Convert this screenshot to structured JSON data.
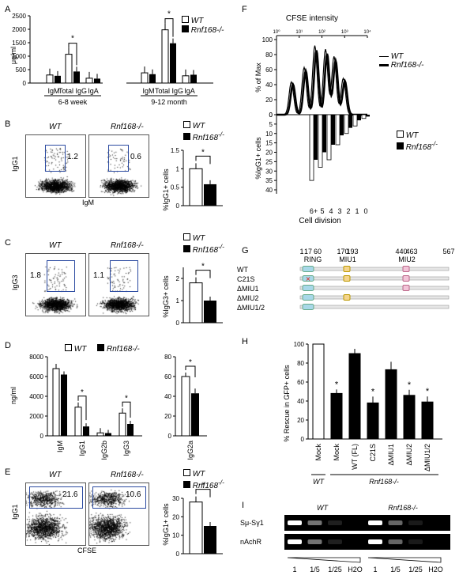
{
  "panels": {
    "A": {
      "label": "A",
      "ylabel": "μg/ml",
      "legend": [
        "WT",
        "Rnf168-/-"
      ],
      "groups": [
        {
          "name": "6-8 week",
          "categories": [
            "IgM",
            "Total IgG",
            "IgA"
          ]
        },
        {
          "name": "9-12 month",
          "categories": [
            "IgM",
            "Total IgG",
            "IgA"
          ]
        }
      ],
      "sig": "*"
    },
    "B": {
      "label": "B",
      "wt_title": "WT",
      "ko_title": "Rnf168-/-",
      "wt_gate": "1.2",
      "ko_gate": "0.6",
      "ylabel": "IgG1",
      "xlabel": "IgM",
      "bar_ylabel": "%IgG1+ cells",
      "sig": "*"
    },
    "C": {
      "label": "C",
      "wt_title": "WT",
      "ko_title": "Rnf168-/-",
      "wt_gate": "1.8",
      "ko_gate": "1.1",
      "ylabel": "IgG3",
      "bar_ylabel": "%IgG3+ cells",
      "sig": "*"
    },
    "D": {
      "label": "D",
      "ylabel": "ng/ml",
      "legend": [
        "WT",
        "Rnf168-/-"
      ],
      "categories": [
        "IgM",
        "IgG1",
        "IgG2b",
        "IgG3"
      ],
      "cat2": [
        "IgG2a"
      ],
      "sig": "*"
    },
    "E": {
      "label": "E",
      "wt_title": "WT",
      "ko_title": "Rnf168-/-",
      "wt_gate": "21.6",
      "ko_gate": "10.6",
      "ylabel": "IgG1",
      "xlabel": "CFSE",
      "bar_ylabel": "%IgG1+ cells",
      "sig": "*"
    },
    "F": {
      "label": "F",
      "title": "CFSE intensity",
      "ylabel_top": "% of Max",
      "ylabel_bottom": "%IgG1+ cells",
      "xlabel": "Cell division",
      "legend": [
        "WT",
        "Rnf168-/-"
      ],
      "div_labels": [
        "6+",
        "5",
        "4",
        "3",
        "2",
        "1",
        "0"
      ]
    },
    "G": {
      "label": "G",
      "positions": [
        "1",
        "17",
        "60",
        "170",
        "193",
        "440",
        "463",
        "567"
      ],
      "domains": [
        "RING",
        "MIU1",
        "MIU2"
      ],
      "constructs": [
        "WT",
        "C21S",
        "ΔMIU1",
        "ΔMIU2",
        "ΔMIU1/2"
      ]
    },
    "H": {
      "label": "H",
      "ylabel": "% Rescue in GFP+ cells",
      "categories": [
        "Mock",
        "Mock",
        "WT (FL)",
        "C21S",
        "ΔMIU1",
        "ΔMIU2",
        "ΔMIU1/2"
      ],
      "group1": "WT",
      "group2": "Rnf168-/-",
      "sig": "*"
    },
    "I": {
      "label": "I",
      "wt": "WT",
      "ko": "Rnf168-/-",
      "rows": [
        "Sμ-Sγ1",
        "nAchR"
      ],
      "lanes": [
        "1",
        "1/5",
        "1/25",
        "H2O",
        "1",
        "1/5",
        "1/25",
        "H2O"
      ]
    }
  },
  "chart_data": [
    {
      "type": "bar",
      "panel": "A",
      "ylabel": "μg/ml",
      "ylim": [
        0,
        2500
      ],
      "categories": [
        "IgM",
        "Total IgG",
        "IgA",
        "IgM",
        "Total IgG",
        "IgA"
      ],
      "series": [
        {
          "name": "WT",
          "values": [
            300,
            1070,
            180,
            380,
            1980,
            270
          ]
        },
        {
          "name": "Rnf168-/-",
          "values": [
            270,
            430,
            165,
            330,
            1480,
            310
          ]
        }
      ]
    },
    {
      "type": "bar",
      "panel": "B",
      "ylabel": "%IgG1+ cells",
      "ylim": [
        0,
        1.5
      ],
      "series": [
        {
          "name": "WT",
          "values": [
            1.0
          ]
        },
        {
          "name": "Rnf168-/-",
          "values": [
            0.58
          ]
        }
      ]
    },
    {
      "type": "bar",
      "panel": "C",
      "ylabel": "%IgG3+ cells",
      "ylim": [
        0,
        2.5
      ],
      "series": [
        {
          "name": "WT",
          "values": [
            1.8
          ]
        },
        {
          "name": "Rnf168-/-",
          "values": [
            1.0
          ]
        }
      ]
    },
    {
      "type": "bar",
      "panel": "D",
      "ylabel": "ng/ml",
      "ylim": [
        0,
        8000
      ],
      "categories": [
        "IgM",
        "IgG1",
        "IgG2b",
        "IgG3"
      ],
      "series": [
        {
          "name": "WT",
          "values": [
            6800,
            2900,
            300,
            2300
          ]
        },
        {
          "name": "Rnf168-/-",
          "values": [
            6200,
            950,
            280,
            1200
          ]
        }
      ]
    },
    {
      "type": "bar",
      "panel": "D2",
      "ylim": [
        0,
        80
      ],
      "categories": [
        "IgG2a"
      ],
      "series": [
        {
          "name": "WT",
          "values": [
            60
          ]
        },
        {
          "name": "Rnf168-/-",
          "values": [
            43
          ]
        }
      ]
    },
    {
      "type": "bar",
      "panel": "E",
      "ylabel": "%IgG1+ cells",
      "ylim": [
        0,
        30
      ],
      "series": [
        {
          "name": "WT",
          "values": [
            28
          ]
        },
        {
          "name": "Rnf168-/-",
          "values": [
            15
          ]
        }
      ]
    },
    {
      "type": "bar",
      "panel": "F",
      "ylabel": "%IgG1+ cells",
      "ylim": [
        0,
        40
      ],
      "categories": [
        "6+",
        "5",
        "4",
        "3",
        "2",
        "1",
        "0"
      ],
      "series": [
        {
          "name": "WT",
          "values": [
            35,
            28,
            24,
            16,
            10,
            6,
            2
          ]
        },
        {
          "name": "Rnf168-/-",
          "values": [
            24,
            20,
            16,
            11,
            7,
            3,
            1
          ]
        }
      ]
    },
    {
      "type": "bar",
      "panel": "H",
      "ylabel": "% Rescue in GFP+ cells",
      "ylim": [
        0,
        100
      ],
      "categories": [
        "Mock",
        "Mock",
        "WT (FL)",
        "C21S",
        "ΔMIU1",
        "ΔMIU2",
        "ΔMIU1/2"
      ],
      "values": [
        100,
        48,
        90,
        38,
        73,
        46,
        39
      ]
    }
  ]
}
